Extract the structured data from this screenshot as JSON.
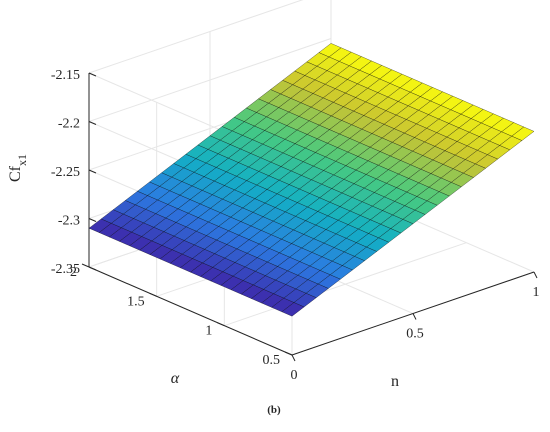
{
  "chart_data": {
    "type": "surface",
    "title": "",
    "panel_label": "(b)",
    "xlabel": "n",
    "ylabel": "α",
    "zlabel_main": "Cf",
    "zlabel_sub": "x1",
    "xlim": [
      0,
      1
    ],
    "ylim": [
      0.5,
      2
    ],
    "zlim": [
      -2.35,
      -2.15
    ],
    "xticks": [
      0,
      0.5,
      1
    ],
    "xtick_labels": [
      "0",
      "0.5",
      "1"
    ],
    "yticks": [
      0.5,
      1,
      1.5,
      2
    ],
    "ytick_labels": [
      "0.5",
      "1",
      "1.5",
      "2"
    ],
    "zticks": [
      -2.35,
      -2.3,
      -2.25,
      -2.2,
      -2.15
    ],
    "ztick_labels": [
      "-2.35",
      "-2.3",
      "-2.25",
      "-2.2",
      "-2.15"
    ],
    "grid": true,
    "colormap": "parula",
    "surface": {
      "n_range": [
        0,
        1
      ],
      "alpha_range": [
        0.5,
        2
      ],
      "corner_values": {
        "n0_alpha0.5": -2.31,
        "n1_alpha0.5": -2.205,
        "n0_alpha2": -2.31,
        "n1_alpha2": -2.205
      },
      "mesh_size": [
        21,
        21
      ]
    }
  },
  "colors": {
    "box": "#262626",
    "grid": "#e6e6e6",
    "mesh_edge": "#000000"
  }
}
